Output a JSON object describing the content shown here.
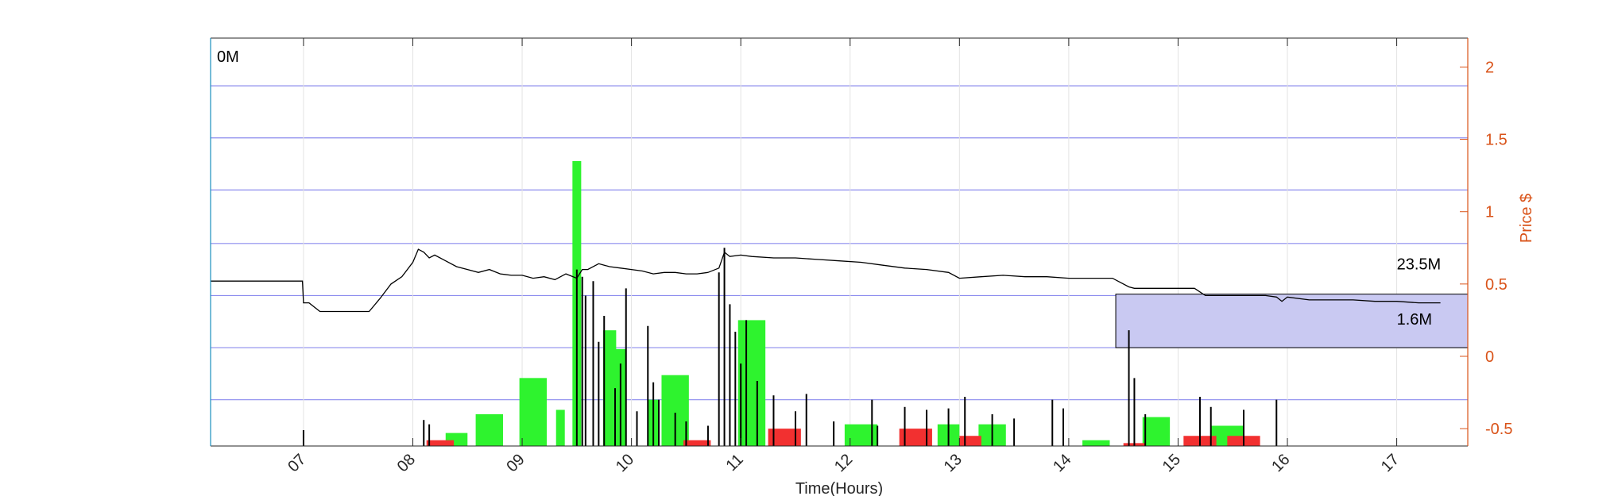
{
  "chart_data": {
    "type": "line",
    "x_unit": "hours",
    "x_ticks": [
      7,
      8,
      9,
      10,
      11,
      12,
      13,
      14,
      15,
      16,
      17
    ],
    "x_tick_labels": [
      "07",
      "08",
      "09",
      "10",
      "11",
      "12",
      "13",
      "14",
      "15",
      "16",
      "17"
    ],
    "xlim": [
      6.15,
      17.65
    ],
    "xlabel": "Time(Hours)",
    "ylabel_right": "Price $",
    "ylim_right": [
      -0.62,
      2.2
    ],
    "y_ticks_right": [
      -0.5,
      0,
      0.5,
      1,
      1.5,
      2
    ],
    "y_tick_labels_right": [
      "-0.5",
      "0",
      "0.5",
      "1",
      "1.5",
      "2"
    ],
    "horizontal_grid_lines": [
      -0.3,
      0.06,
      0.42,
      0.78,
      1.15,
      1.51,
      1.87
    ],
    "grid": true,
    "annotations": {
      "top_left": "0M",
      "upper_right": "23.5M",
      "lower_right": "1.6M"
    },
    "highlight_box": {
      "x_range": [
        14.43,
        17.65
      ],
      "y_range": [
        0.06,
        0.43
      ],
      "color": "#c9c9f2"
    },
    "series": [
      {
        "kind": "line",
        "color": "#000000",
        "x": [
          6.15,
          6.99,
          7.0,
          7.05,
          7.15,
          7.6,
          7.7,
          7.8,
          7.9,
          8.0,
          8.05,
          8.1,
          8.15,
          8.2,
          8.3,
          8.4,
          8.5,
          8.6,
          8.7,
          8.8,
          8.9,
          9.0,
          9.1,
          9.2,
          9.3,
          9.4,
          9.5,
          9.55,
          9.6,
          9.7,
          9.8,
          9.9,
          10.0,
          10.1,
          10.2,
          10.3,
          10.4,
          10.5,
          10.6,
          10.7,
          10.8,
          10.85,
          10.9,
          11.0,
          11.1,
          11.3,
          11.5,
          11.7,
          11.9,
          12.1,
          12.3,
          12.5,
          12.7,
          12.9,
          13.0,
          13.2,
          13.4,
          13.6,
          13.8,
          14.0,
          14.2,
          14.4,
          14.55,
          14.6,
          14.8,
          15.0,
          15.15,
          15.25,
          15.4,
          15.6,
          15.8,
          15.9,
          15.95,
          16.0,
          16.2,
          16.4,
          16.6,
          16.8,
          17.0,
          17.2,
          17.4
        ],
        "y": [
          0.52,
          0.52,
          0.37,
          0.37,
          0.31,
          0.31,
          0.4,
          0.5,
          0.55,
          0.65,
          0.74,
          0.72,
          0.68,
          0.7,
          0.66,
          0.62,
          0.6,
          0.58,
          0.6,
          0.57,
          0.56,
          0.56,
          0.54,
          0.55,
          0.53,
          0.57,
          0.54,
          0.6,
          0.6,
          0.64,
          0.62,
          0.61,
          0.6,
          0.59,
          0.57,
          0.58,
          0.58,
          0.57,
          0.57,
          0.58,
          0.61,
          0.72,
          0.69,
          0.7,
          0.69,
          0.68,
          0.68,
          0.67,
          0.66,
          0.65,
          0.63,
          0.61,
          0.6,
          0.58,
          0.54,
          0.55,
          0.56,
          0.55,
          0.55,
          0.54,
          0.54,
          0.54,
          0.48,
          0.47,
          0.47,
          0.47,
          0.47,
          0.42,
          0.42,
          0.42,
          0.42,
          0.41,
          0.38,
          0.41,
          0.39,
          0.39,
          0.39,
          0.38,
          0.38,
          0.37,
          0.37
        ]
      },
      {
        "kind": "bar",
        "name": "green",
        "color": "#2ef32e",
        "x": [
          8.4,
          8.7,
          9.1,
          9.35,
          9.5,
          9.8,
          9.9,
          10.2,
          10.4,
          11.1,
          12.1,
          12.9,
          13.3,
          14.25,
          14.8,
          15.45
        ],
        "width": [
          0.2,
          0.25,
          0.25,
          0.08,
          0.08,
          0.12,
          0.1,
          0.1,
          0.25,
          0.25,
          0.3,
          0.2,
          0.25,
          0.25,
          0.25,
          0.3
        ],
        "values": [
          -0.53,
          -0.4,
          -0.15,
          -0.37,
          1.35,
          0.18,
          0.05,
          -0.3,
          -0.13,
          0.25,
          -0.47,
          -0.47,
          -0.47,
          -0.58,
          -0.42,
          -0.48
        ]
      },
      {
        "kind": "bar",
        "name": "red",
        "color": "#f23030",
        "x": [
          8.25,
          10.6,
          11.4,
          12.6,
          13.1,
          14.6,
          15.2,
          15.6
        ],
        "width": [
          0.25,
          0.25,
          0.3,
          0.3,
          0.2,
          0.2,
          0.3,
          0.3
        ],
        "values": [
          -0.58,
          -0.58,
          -0.5,
          -0.5,
          -0.55,
          -0.6,
          -0.55,
          -0.55
        ]
      },
      {
        "kind": "spikes",
        "color": "#000000",
        "x": [
          7.0,
          8.1,
          8.15,
          9.5,
          9.55,
          9.58,
          9.65,
          9.7,
          9.75,
          9.85,
          9.9,
          9.95,
          10.05,
          10.15,
          10.2,
          10.25,
          10.4,
          10.5,
          10.7,
          10.8,
          10.85,
          10.9,
          10.95,
          11.0,
          11.05,
          11.15,
          11.3,
          11.5,
          11.6,
          11.85,
          12.2,
          12.25,
          12.5,
          12.7,
          12.9,
          13.05,
          13.3,
          13.5,
          13.85,
          13.95,
          14.55,
          14.6,
          14.7,
          15.2,
          15.3,
          15.6,
          15.9
        ],
        "values": [
          -0.51,
          -0.44,
          -0.47,
          0.6,
          0.55,
          0.42,
          0.52,
          0.1,
          0.28,
          -0.22,
          -0.05,
          0.47,
          -0.38,
          0.21,
          -0.18,
          -0.3,
          -0.39,
          -0.45,
          -0.48,
          0.58,
          0.75,
          0.36,
          0.17,
          -0.05,
          0.25,
          -0.17,
          -0.27,
          -0.38,
          -0.26,
          -0.45,
          -0.3,
          -0.48,
          -0.35,
          -0.37,
          -0.36,
          -0.28,
          -0.4,
          -0.43,
          -0.3,
          -0.36,
          0.18,
          -0.15,
          -0.4,
          -0.28,
          -0.35,
          -0.37,
          -0.3
        ]
      }
    ]
  }
}
